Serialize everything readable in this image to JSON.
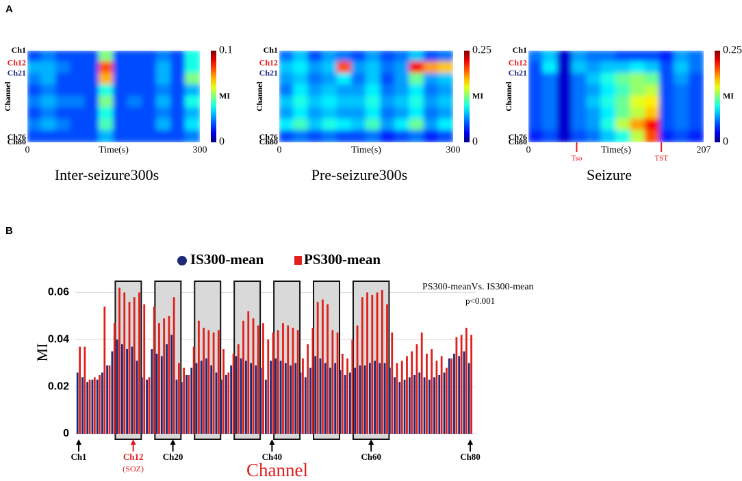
{
  "panels": [
    "A",
    "B"
  ],
  "chart_data": [
    {
      "type": "heatmap",
      "title": "Inter-seizure300s",
      "xlabel": "Time(s)",
      "ylabel": "Channel",
      "xlim": [
        0,
        300
      ],
      "xticks": [
        0,
        300
      ],
      "ylim": [
        1,
        80
      ],
      "yticks": [
        {
          "value": 1,
          "label": "Ch1"
        },
        {
          "value": 12,
          "label": "Ch12"
        },
        {
          "value": 21,
          "label": "Ch21"
        },
        {
          "value": 76,
          "label": "Ch76"
        },
        {
          "value": 80,
          "label": "Ch80"
        }
      ],
      "ytick_colors": [
        "#000000",
        "#e31a1c",
        "#1f2a8a",
        "#000000",
        "#000000"
      ],
      "colormap": "jet",
      "colorbar_label": "MI",
      "clim": [
        0,
        0.1
      ],
      "cticks": [
        0,
        0.1
      ],
      "z": [
        [
          0.02,
          0.025,
          0.02,
          0.02,
          0.02,
          0.05,
          0.02,
          0.02,
          0.02,
          0.025,
          0.02,
          0.04
        ],
        [
          0.03,
          0.03,
          0.025,
          0.02,
          0.02,
          0.08,
          0.02,
          0.02,
          0.02,
          0.03,
          0.02,
          0.04
        ],
        [
          0.025,
          0.03,
          0.02,
          0.02,
          0.02,
          0.07,
          0.02,
          0.02,
          0.02,
          0.03,
          0.02,
          0.05
        ],
        [
          0.02,
          0.025,
          0.02,
          0.02,
          0.02,
          0.04,
          0.02,
          0.02,
          0.02,
          0.025,
          0.02,
          0.03
        ],
        [
          0.025,
          0.03,
          0.025,
          0.025,
          0.02,
          0.05,
          0.02,
          0.025,
          0.02,
          0.03,
          0.02,
          0.04
        ],
        [
          0.02,
          0.025,
          0.02,
          0.02,
          0.02,
          0.04,
          0.02,
          0.02,
          0.02,
          0.025,
          0.02,
          0.03
        ],
        [
          0.025,
          0.03,
          0.025,
          0.02,
          0.02,
          0.045,
          0.02,
          0.02,
          0.02,
          0.03,
          0.02,
          0.035
        ],
        [
          0.02,
          0.02,
          0.02,
          0.02,
          0.02,
          0.03,
          0.02,
          0.02,
          0.02,
          0.02,
          0.02,
          0.025
        ]
      ]
    },
    {
      "type": "heatmap",
      "title": "Pre-seizure300s",
      "xlabel": "Time(s)",
      "ylabel": "Channel",
      "xlim": [
        0,
        300
      ],
      "xticks": [
        0,
        300
      ],
      "ylim": [
        1,
        80
      ],
      "yticks": [
        {
          "value": 1,
          "label": "Ch1"
        },
        {
          "value": 12,
          "label": "Ch12"
        },
        {
          "value": 21,
          "label": "Ch21"
        },
        {
          "value": 76,
          "label": "Ch76"
        },
        {
          "value": 80,
          "label": "Ch80"
        }
      ],
      "ytick_colors": [
        "#000000",
        "#e31a1c",
        "#1f2a8a",
        "#000000",
        "#000000"
      ],
      "colormap": "jet",
      "colorbar_label": "MI",
      "clim": [
        0,
        0.25
      ],
      "cticks": [
        0,
        0.25
      ],
      "z": [
        [
          0.06,
          0.08,
          0.05,
          0.07,
          0.06,
          0.05,
          0.07,
          0.05,
          0.06,
          0.08,
          0.05,
          0.06
        ],
        [
          0.08,
          0.09,
          0.07,
          0.08,
          0.2,
          0.07,
          0.08,
          0.06,
          0.07,
          0.22,
          0.18,
          0.17
        ],
        [
          0.07,
          0.08,
          0.06,
          0.07,
          0.09,
          0.06,
          0.08,
          0.05,
          0.07,
          0.12,
          0.07,
          0.08
        ],
        [
          0.06,
          0.09,
          0.07,
          0.08,
          0.07,
          0.07,
          0.09,
          0.06,
          0.07,
          0.09,
          0.06,
          0.07
        ],
        [
          0.08,
          0.1,
          0.08,
          0.09,
          0.08,
          0.08,
          0.1,
          0.07,
          0.08,
          0.1,
          0.07,
          0.08
        ],
        [
          0.07,
          0.09,
          0.07,
          0.08,
          0.07,
          0.07,
          0.09,
          0.06,
          0.07,
          0.09,
          0.06,
          0.07
        ],
        [
          0.09,
          0.11,
          0.08,
          0.1,
          0.09,
          0.08,
          0.11,
          0.07,
          0.09,
          0.12,
          0.07,
          0.09
        ],
        [
          0.05,
          0.06,
          0.05,
          0.06,
          0.05,
          0.05,
          0.06,
          0.04,
          0.05,
          0.06,
          0.04,
          0.05
        ]
      ]
    },
    {
      "type": "heatmap",
      "title": "Seizure",
      "xlabel": "Time(s)",
      "ylabel": "Channel",
      "xlim": [
        0,
        207
      ],
      "xticks": [
        0,
        207
      ],
      "ylim": [
        1,
        80
      ],
      "yticks": [
        {
          "value": 1,
          "label": "Ch1"
        },
        {
          "value": 12,
          "label": "Ch12"
        },
        {
          "value": 21,
          "label": "Ch21"
        },
        {
          "value": 76,
          "label": "Ch76"
        },
        {
          "value": 80,
          "label": "Ch80"
        }
      ],
      "ytick_colors": [
        "#000000",
        "#e31a1c",
        "#1f2a8a",
        "#000000",
        "#000000"
      ],
      "colormap": "jet",
      "colorbar_label": "MI",
      "clim": [
        0,
        0.25
      ],
      "cticks": [
        0,
        0.25
      ],
      "markers": [
        {
          "label": "Tso",
          "x": 57
        },
        {
          "label": "TST",
          "x": 157
        }
      ],
      "marker_color": "#e31a1c",
      "z": [
        [
          0.06,
          0.08,
          0.02,
          0.07,
          0.06,
          0.06,
          0.05,
          0.05,
          0.05,
          0.04,
          0.07,
          0.06
        ],
        [
          0.05,
          0.09,
          0.02,
          0.08,
          0.07,
          0.08,
          0.08,
          0.09,
          0.08,
          0.05,
          0.08,
          0.06
        ],
        [
          0.05,
          0.06,
          0.02,
          0.06,
          0.08,
          0.1,
          0.12,
          0.13,
          0.12,
          0.05,
          0.07,
          0.05
        ],
        [
          0.05,
          0.06,
          0.02,
          0.06,
          0.07,
          0.09,
          0.11,
          0.13,
          0.14,
          0.05,
          0.06,
          0.05
        ],
        [
          0.05,
          0.06,
          0.02,
          0.06,
          0.08,
          0.1,
          0.12,
          0.15,
          0.16,
          0.05,
          0.06,
          0.05
        ],
        [
          0.05,
          0.06,
          0.02,
          0.06,
          0.07,
          0.09,
          0.12,
          0.14,
          0.17,
          0.05,
          0.06,
          0.05
        ],
        [
          0.05,
          0.06,
          0.02,
          0.06,
          0.07,
          0.1,
          0.14,
          0.18,
          0.22,
          0.05,
          0.06,
          0.05
        ],
        [
          0.04,
          0.05,
          0.02,
          0.05,
          0.06,
          0.08,
          0.1,
          0.14,
          0.2,
          0.04,
          0.05,
          0.04
        ]
      ]
    },
    {
      "type": "bar",
      "ylabel": "MI",
      "xlabel": "Channel",
      "xlabel_color": "#e31a1c",
      "ylim": [
        0,
        0.07
      ],
      "yticks": [
        0,
        0.02,
        0.04,
        0.06
      ],
      "grid": true,
      "categories": [
        "Ch1",
        null,
        null,
        null,
        null,
        null,
        null,
        null,
        null,
        null,
        null,
        "Ch12",
        null,
        null,
        null,
        null,
        null,
        null,
        null,
        "Ch20",
        null,
        null,
        null,
        null,
        null,
        null,
        null,
        null,
        null,
        null,
        null,
        null,
        null,
        null,
        null,
        null,
        null,
        null,
        null,
        "Ch40",
        null,
        null,
        null,
        null,
        null,
        null,
        null,
        null,
        null,
        null,
        null,
        null,
        null,
        null,
        null,
        null,
        null,
        null,
        null,
        "Ch60",
        null,
        null,
        null,
        null,
        null,
        null,
        null,
        null,
        null,
        null,
        null,
        null,
        null,
        null,
        null,
        null,
        null,
        null,
        null,
        "Ch80"
      ],
      "soz": {
        "category": 11,
        "label": "(SOZ)",
        "color": "#e31a1c"
      },
      "highlights": [
        [
          9,
          13
        ],
        [
          17,
          21
        ],
        [
          25,
          29
        ],
        [
          33,
          37
        ],
        [
          41,
          45
        ],
        [
          49,
          53
        ],
        [
          57,
          63
        ]
      ],
      "annotations": [
        "PS300-meanVs. IS300-mean",
        "p<0.001"
      ],
      "series": [
        {
          "name": "IS300-mean",
          "color": "#1c2a78",
          "values": [
            0.026,
            0.024,
            0.022,
            0.023,
            0.023,
            0.026,
            0.029,
            0.035,
            0.04,
            0.038,
            0.036,
            0.037,
            0.031,
            0.024,
            0.023,
            0.036,
            0.034,
            0.033,
            0.038,
            0.042,
            0.023,
            0.022,
            0.025,
            0.028,
            0.03,
            0.031,
            0.032,
            0.029,
            0.026,
            0.023,
            0.025,
            0.029,
            0.033,
            0.032,
            0.031,
            0.03,
            0.029,
            0.028,
            0.023,
            0.031,
            0.032,
            0.031,
            0.03,
            0.029,
            0.03,
            0.026,
            0.024,
            0.028,
            0.033,
            0.032,
            0.03,
            0.028,
            0.03,
            0.027,
            0.025,
            0.026,
            0.028,
            0.029,
            0.029,
            0.03,
            0.031,
            0.03,
            0.03,
            0.028,
            0.024,
            0.022,
            0.023,
            0.024,
            0.025,
            0.026,
            0.024,
            0.023,
            0.024,
            0.025,
            0.026,
            0.032,
            0.034,
            0.033,
            0.035,
            0.03
          ]
        },
        {
          "name": "PS300-mean",
          "color": "#e0201b",
          "values": [
            0.037,
            0.037,
            0.023,
            0.024,
            0.025,
            0.054,
            0.029,
            0.047,
            0.062,
            0.06,
            0.056,
            0.058,
            0.06,
            0.055,
            0.024,
            0.054,
            0.047,
            0.049,
            0.05,
            0.058,
            0.03,
            0.028,
            0.025,
            0.037,
            0.048,
            0.045,
            0.044,
            0.043,
            0.044,
            0.036,
            0.026,
            0.034,
            0.038,
            0.048,
            0.052,
            0.049,
            0.046,
            0.047,
            0.04,
            0.043,
            0.044,
            0.047,
            0.046,
            0.045,
            0.044,
            0.032,
            0.038,
            0.045,
            0.056,
            0.057,
            0.055,
            0.044,
            0.043,
            0.034,
            0.032,
            0.04,
            0.046,
            0.058,
            0.06,
            0.059,
            0.06,
            0.061,
            0.055,
            0.043,
            0.03,
            0.031,
            0.033,
            0.035,
            0.038,
            0.043,
            0.034,
            0.036,
            0.031,
            0.033,
            0.028,
            0.032,
            0.041,
            0.042,
            0.045,
            0.042
          ]
        }
      ]
    }
  ]
}
